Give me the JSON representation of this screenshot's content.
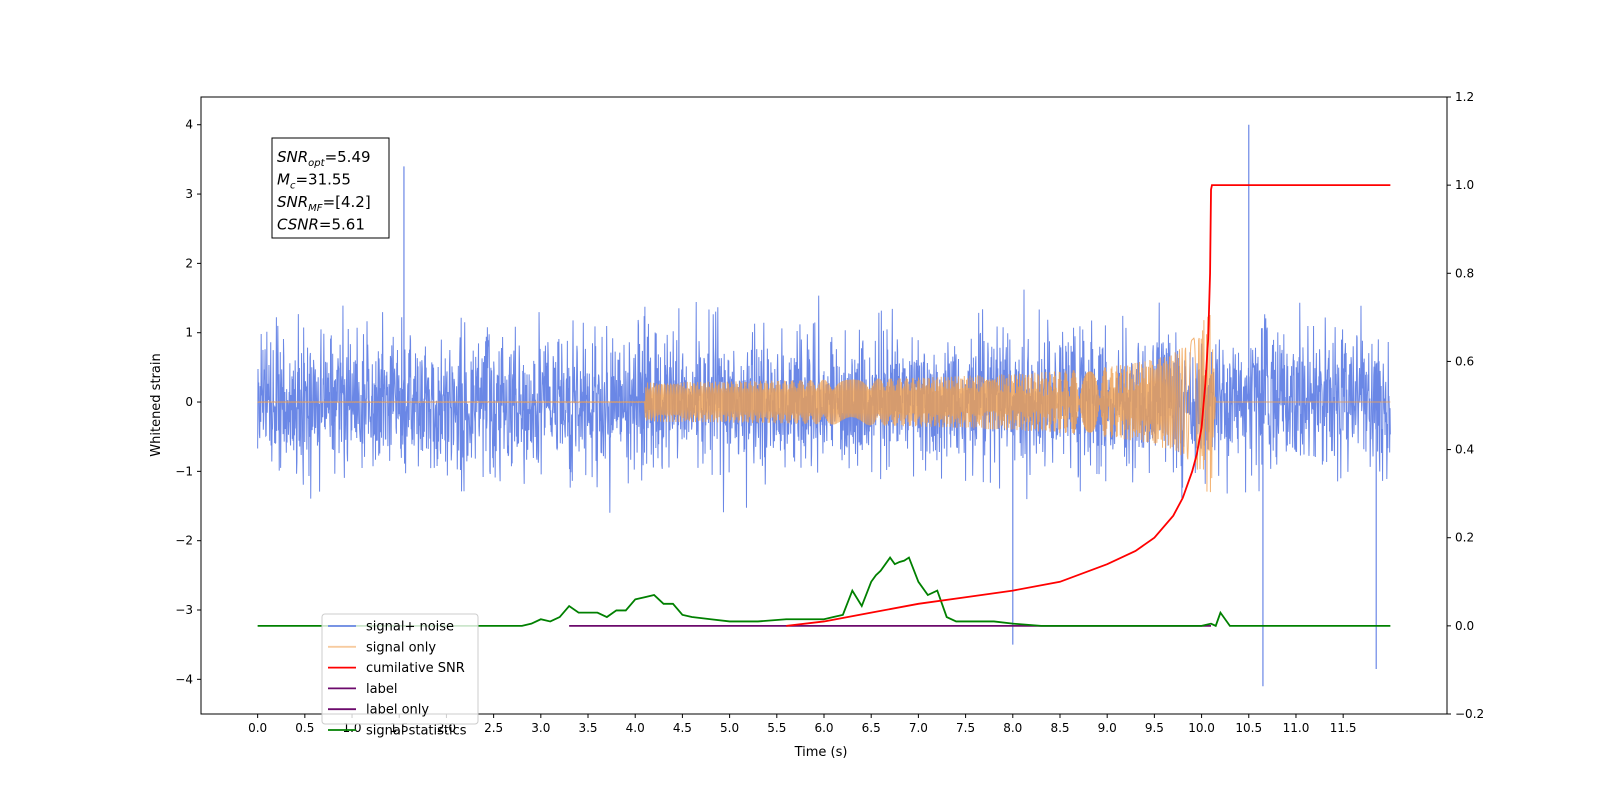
{
  "chart_data": {
    "type": "line",
    "xlabel": "Time (s)",
    "ylabel": "Whitened strain",
    "xlim": [
      -0.6,
      12.6
    ],
    "ylim": [
      -4.5,
      4.4
    ],
    "y2lim": [
      -0.2,
      1.2
    ],
    "xticks": [
      0.0,
      0.5,
      1.0,
      1.5,
      2.0,
      2.5,
      3.0,
      3.5,
      4.0,
      4.5,
      5.0,
      5.5,
      6.0,
      6.5,
      7.0,
      7.5,
      8.0,
      8.5,
      9.0,
      9.5,
      10.0,
      10.5,
      11.0,
      11.5
    ],
    "xtick_labels": [
      "0.0",
      "0.5",
      "1.0",
      "1.5",
      "2.0",
      "2.5",
      "3.0",
      "3.5",
      "4.0",
      "4.5",
      "5.0",
      "5.5",
      "6.0",
      "6.5",
      "7.0",
      "7.5",
      "8.0",
      "8.5",
      "9.0",
      "9.5",
      "10.0",
      "10.5",
      "11.0",
      "11.5"
    ],
    "yticks": [
      -4,
      -3,
      -2,
      -1,
      0,
      1,
      2,
      3,
      4
    ],
    "ytick_labels": [
      "−4",
      "−3",
      "−2",
      "−1",
      "0",
      "1",
      "2",
      "3",
      "4"
    ],
    "y2ticks": [
      -0.2,
      0.0,
      0.2,
      0.4,
      0.6,
      0.8,
      1.0,
      1.2
    ],
    "y2tick_labels": [
      "−0.2",
      "0.0",
      "0.2",
      "0.4",
      "0.6",
      "0.8",
      "1.0",
      "1.2"
    ],
    "grid": false,
    "legend_position": "bottom-left",
    "annotation": {
      "lines": [
        {
          "base": "SNR",
          "sub": "opt",
          "value": "=5.49"
        },
        {
          "base": "M",
          "sub": "c",
          "value": "=31.55"
        },
        {
          "base": "SNR",
          "sub": "MF",
          "value": "=[4.2]"
        },
        {
          "base": "CSNR",
          "sub": "",
          "value": "=5.61"
        }
      ]
    },
    "series": [
      {
        "name": "signal+ noise",
        "color": "#6a87e6",
        "axis": "left",
        "kind": "noise",
        "x_range": [
          0.0,
          12.0
        ],
        "amplitude_range": [
          -4.1,
          4.0
        ],
        "notable_peaks": [
          [
            10.5,
            4.0
          ],
          [
            10.65,
            -4.1
          ],
          [
            11.85,
            -3.85
          ],
          [
            1.55,
            3.4
          ],
          [
            8.0,
            -3.5
          ]
        ]
      },
      {
        "name": "signal only",
        "color": "#f0a050",
        "axis": "left",
        "kind": "chirp",
        "x_range": [
          0.0,
          12.0
        ],
        "merger_time": 10.1,
        "peak_amplitude": 1.3
      },
      {
        "name": "cumilative SNR",
        "color": "#ff0000",
        "axis": "right",
        "x": [
          5.6,
          6.0,
          6.5,
          7.0,
          7.5,
          8.0,
          8.5,
          9.0,
          9.3,
          9.5,
          9.7,
          9.8,
          9.9,
          9.95,
          10.0,
          10.04,
          10.07,
          10.09,
          10.1,
          10.11,
          11.5,
          12.0
        ],
        "y": [
          0.0,
          0.01,
          0.03,
          0.05,
          0.065,
          0.08,
          0.1,
          0.14,
          0.17,
          0.2,
          0.25,
          0.29,
          0.35,
          0.39,
          0.45,
          0.55,
          0.65,
          0.8,
          0.99,
          1.0,
          1.0,
          1.0
        ]
      },
      {
        "name": "label",
        "color": "#6c0a6c",
        "axis": "right",
        "x": [
          3.3,
          10.1
        ],
        "y": [
          0.0,
          0.0
        ]
      },
      {
        "name": "label only",
        "color": "#6c0a6c",
        "axis": "right",
        "hidden_in_plot": true,
        "x": [],
        "y": []
      },
      {
        "name": "signal statistics",
        "color": "#008000",
        "axis": "right",
        "x": [
          0.0,
          2.8,
          2.9,
          3.0,
          3.1,
          3.2,
          3.3,
          3.4,
          3.5,
          3.6,
          3.7,
          3.8,
          3.9,
          4.0,
          4.1,
          4.2,
          4.3,
          4.4,
          4.5,
          4.6,
          4.8,
          5.0,
          5.3,
          5.6,
          5.8,
          6.0,
          6.1,
          6.2,
          6.3,
          6.4,
          6.5,
          6.55,
          6.6,
          6.7,
          6.75,
          6.8,
          6.85,
          6.9,
          7.0,
          7.1,
          7.2,
          7.3,
          7.4,
          7.6,
          7.8,
          8.0,
          8.3,
          10.0,
          10.1,
          10.15,
          10.2,
          10.3,
          12.0
        ],
        "y": [
          0.0,
          0.0,
          0.005,
          0.015,
          0.01,
          0.02,
          0.045,
          0.03,
          0.03,
          0.03,
          0.02,
          0.035,
          0.035,
          0.06,
          0.065,
          0.07,
          0.05,
          0.05,
          0.025,
          0.02,
          0.015,
          0.01,
          0.01,
          0.015,
          0.015,
          0.015,
          0.02,
          0.025,
          0.08,
          0.045,
          0.1,
          0.115,
          0.125,
          0.155,
          0.14,
          0.145,
          0.148,
          0.155,
          0.1,
          0.07,
          0.08,
          0.02,
          0.01,
          0.01,
          0.01,
          0.005,
          0.0,
          0.0,
          0.005,
          0.0,
          0.03,
          0.0,
          0.0
        ]
      }
    ]
  }
}
